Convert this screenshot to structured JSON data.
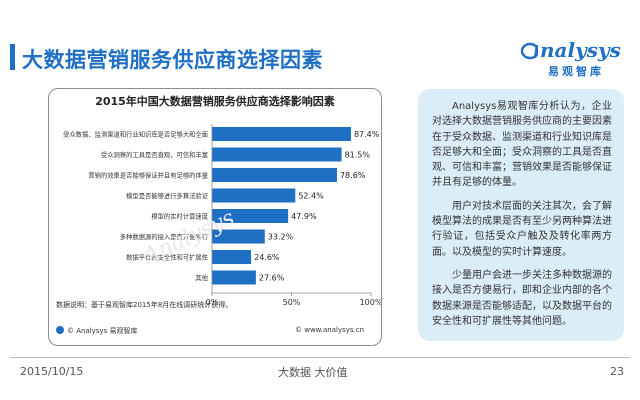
{
  "header": {
    "title": "大数据营销服务供应商选择因素",
    "logo_text": "nalysys",
    "logo_cn": "易观智库"
  },
  "colors": {
    "accent": "#1f6fc5",
    "bar": "#1f6fc5",
    "panel_bg": "#dbeef8"
  },
  "chart_data": {
    "type": "bar",
    "orientation": "horizontal",
    "title": "2015年中国大数据营销服务供应商选择影响因素",
    "categories": [
      "受众数据、监测渠道和行业知识库是否足够大和全面",
      "受众洞察的工具是否直观，可信和丰富",
      "营销的效果是否能够保证并且有足够的体量",
      "模型是否能够进行多算法验证",
      "模型的实时计算速度",
      "多种数据源的接入是否方便易行",
      "数据平台的安全性和可扩展性",
      "其他"
    ],
    "values": [
      87.4,
      81.5,
      78.6,
      52.4,
      47.9,
      33.2,
      24.6,
      27.6
    ],
    "value_labels": [
      "87.4%",
      "81.5%",
      "78.6%",
      "52.4%",
      "47.9%",
      "33.2%",
      "24.6%",
      "27.6%"
    ],
    "xlim": [
      0,
      100
    ],
    "xticks": [
      "0%",
      "50%",
      "100%"
    ],
    "grid": false,
    "note": "数据说明：基于易观智库2015年8月在线调研统计获得。",
    "source_left": "© Analysys 易观智库",
    "source_right": "© www.analysys.cn"
  },
  "panel": {
    "paragraphs": [
      "Analysys易观智库分析认为，企业对选择大数据营销服务供应商的主要因素在于受众数据、监测渠道和行业知识库是否足够大和全面；受众洞察的工具是否直观、可信和丰富；营销效果是否能够保证并且有足够的体量。",
      "用户对技术层面的关注其次，会了解模型算法的成果是否有至少另两种算法进行验证，包括受众户触及及转化率两方面。以及模型的实时计算速度。",
      "少量用户会进一步关注多种数据源的接入是否方便易行，即和企业内部的各个数据来源是否能够适配，以及数据平台的安全性和可扩展性等其他问题。"
    ]
  },
  "footer": {
    "date": "2015/10/15",
    "slogan": "大数据    大价值",
    "page": "23"
  }
}
